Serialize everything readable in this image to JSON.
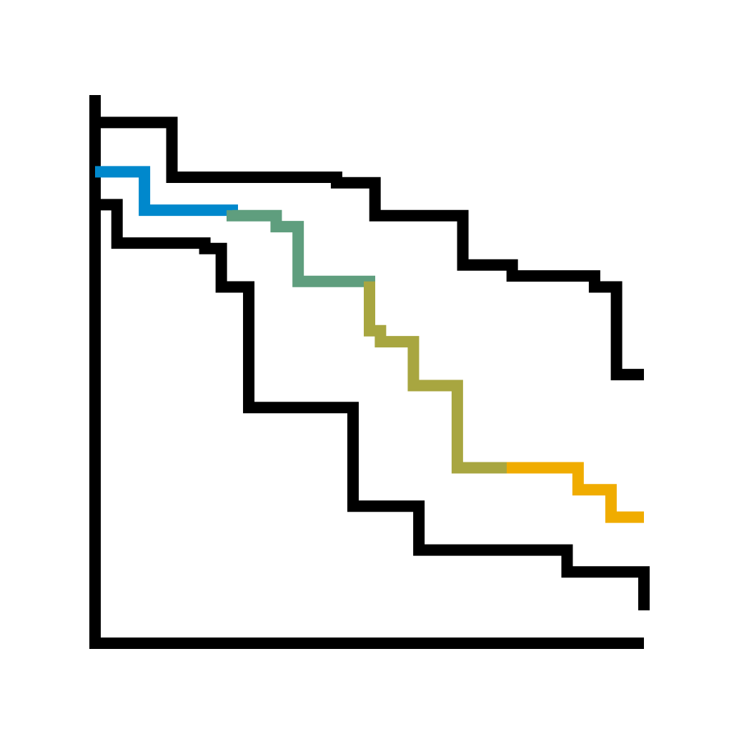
{
  "chart_data": {
    "type": "line",
    "style": "step",
    "grid": false,
    "legend": "none",
    "xlim": [
      0,
      100
    ],
    "ylim": [
      0,
      100
    ],
    "axes_color": "#000000",
    "series": [
      {
        "role": "upper-bound",
        "color": "#000000",
        "x": [
          0,
          14,
          44,
          51,
          67,
          76,
          91,
          95,
          100
        ],
        "y": [
          95,
          85,
          84,
          78,
          69,
          67,
          65,
          49,
          49
        ]
      },
      {
        "role": "center-estimate",
        "color": "#0088cc",
        "x": [
          0,
          9,
          25,
          33,
          37,
          50,
          52,
          58,
          66,
          75,
          88,
          94,
          100
        ],
        "y": [
          86,
          79,
          78,
          76,
          66,
          57,
          55,
          47,
          32,
          32,
          28,
          23,
          23
        ],
        "color_stops": [
          {
            "from_x": 0,
            "to_x": 25,
            "color": "#0088cc"
          },
          {
            "from_x": 25,
            "to_x": 50,
            "color": "#5f9e7e"
          },
          {
            "from_x": 50,
            "to_x": 75,
            "color": "#a8a640"
          },
          {
            "from_x": 75,
            "to_x": 100,
            "color": "#f0ac00"
          }
        ]
      },
      {
        "role": "lower-bound",
        "color": "#000000",
        "x": [
          0,
          4,
          20,
          23,
          28,
          47,
          59,
          86,
          100
        ],
        "y": [
          80,
          73,
          72,
          65,
          43,
          25,
          17,
          13,
          6
        ]
      }
    ]
  }
}
